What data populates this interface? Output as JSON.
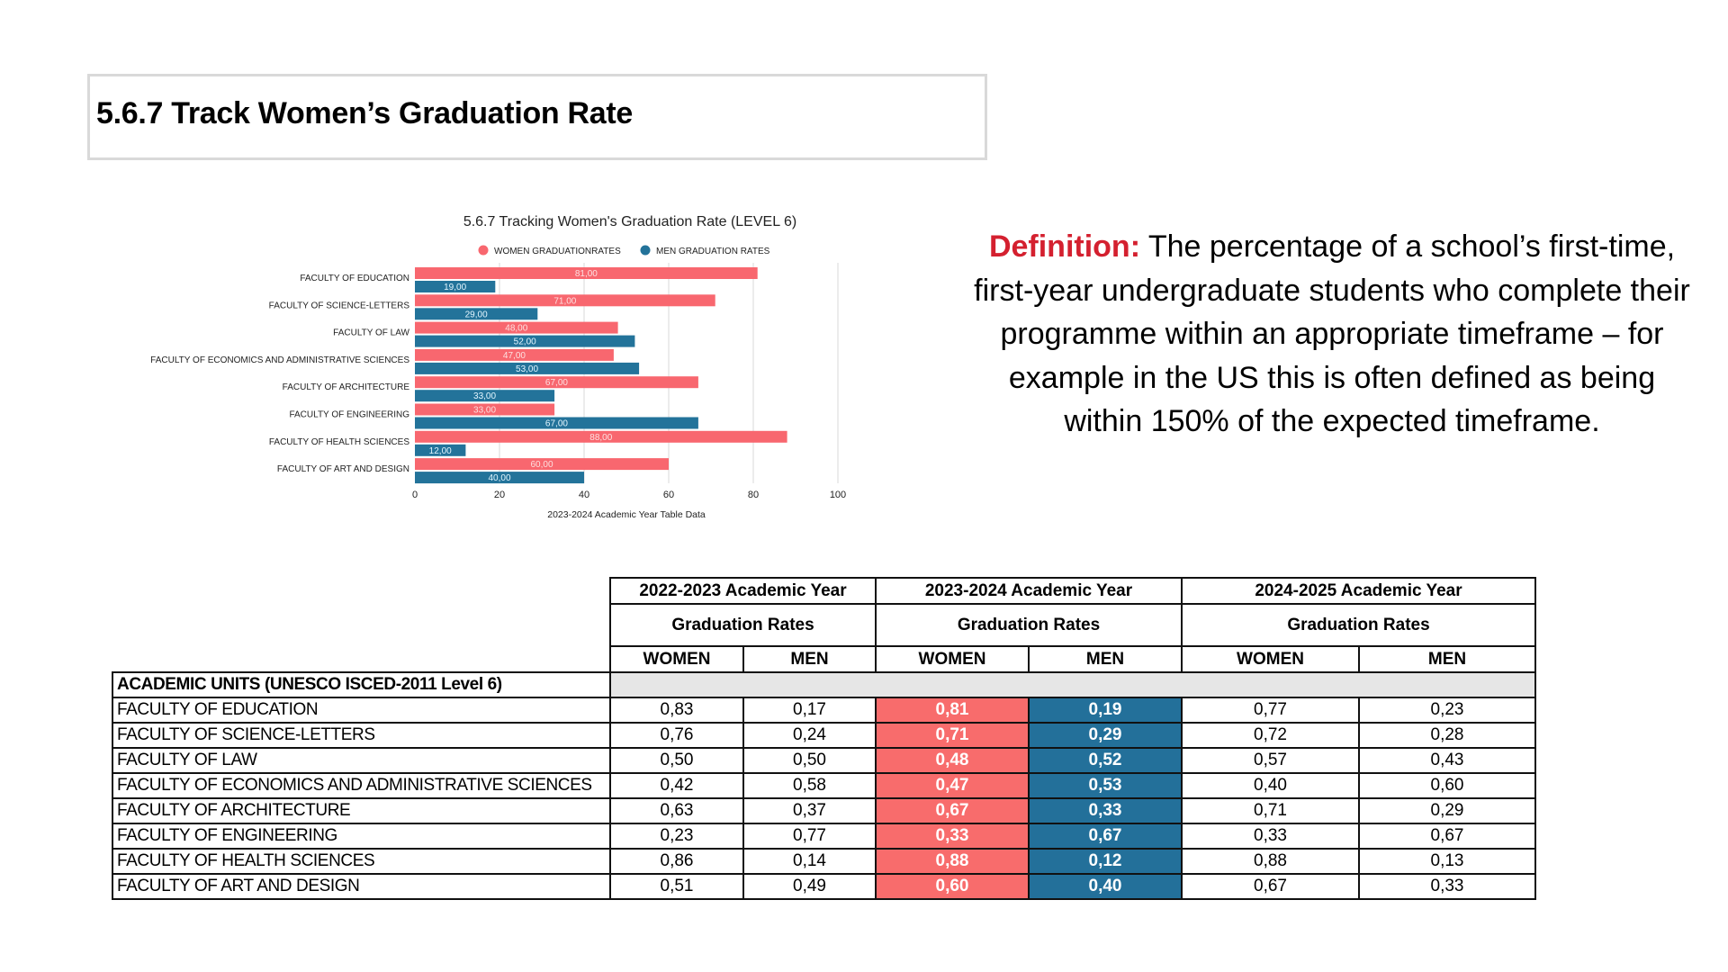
{
  "page": {
    "title": "5.6.7 Track Women’s Graduation Rate"
  },
  "definition": {
    "label": "Definition:",
    "text": " The percentage of a school’s first-time, first-year undergraduate students who complete their programme within an appropriate timeframe – for example in the US this is often defined as being within 150% of the expected timeframe."
  },
  "colors": {
    "women": "#f8676f",
    "men": "#23739a",
    "women_cell": "#f86c6c",
    "men_cell": "#23709a",
    "definition_label": "#d4202f",
    "gridline": "#d9d9d9"
  },
  "chart_data": {
    "type": "bar",
    "orientation": "horizontal",
    "title": "5.6.7 Tracking Women's Graduation Rate (LEVEL 6)",
    "xlabel": "2023-2024 Academic Year Table Data",
    "ylabel": "",
    "xlim": [
      0,
      100
    ],
    "xticks": [
      0,
      20,
      40,
      60,
      80,
      100
    ],
    "grid": true,
    "legend_position": "top",
    "categories": [
      "FACULTY OF EDUCATION",
      "FACULTY OF SCIENCE-LETTERS",
      "FACULTY OF LAW",
      "FACULTY OF ECONOMICS AND ADMINISTRATIVE SCIENCES",
      "FACULTY OF ARCHITECTURE",
      "FACULTY OF ENGINEERING",
      "FACULTY OF HEALTH SCIENCES",
      "FACULTY OF ART AND DESIGN"
    ],
    "series": [
      {
        "name": "WOMEN GRADUATIONRATES",
        "color": "#f8676f",
        "values": [
          81,
          71,
          48,
          47,
          67,
          33,
          88,
          60
        ],
        "labels": [
          "81,00",
          "71,00",
          "48,00",
          "47,00",
          "67,00",
          "33,00",
          "88,00",
          "60,00"
        ]
      },
      {
        "name": "MEN GRADUATION RATES",
        "color": "#23739a",
        "values": [
          19,
          29,
          52,
          53,
          33,
          67,
          12,
          40
        ],
        "labels": [
          "19,00",
          "29,00",
          "52,00",
          "53,00",
          "33,00",
          "67,00",
          "12,00",
          "40,00"
        ]
      }
    ]
  },
  "table": {
    "years": [
      "2022-2023 Academic Year",
      "2023-2024 Academic Year",
      "2024-2025 Academic Year"
    ],
    "subheader": "Graduation Rates",
    "genders": [
      "WOMEN",
      "MEN"
    ],
    "section_label": "ACADEMIC UNITS (UNESCO ISCED-2011 Level 6)",
    "highlight_year_index": 1,
    "rows": [
      {
        "unit": "FACULTY OF EDUCATION",
        "values": [
          "0,83",
          "0,17",
          "0,81",
          "0,19",
          "0,77",
          "0,23"
        ]
      },
      {
        "unit": "FACULTY OF SCIENCE-LETTERS",
        "values": [
          "0,76",
          "0,24",
          "0,71",
          "0,29",
          "0,72",
          "0,28"
        ]
      },
      {
        "unit": "FACULTY OF LAW",
        "values": [
          "0,50",
          "0,50",
          "0,48",
          "0,52",
          "0,57",
          "0,43"
        ]
      },
      {
        "unit": "FACULTY OF ECONOMICS AND ADMINISTRATIVE SCIENCES",
        "values": [
          "0,42",
          "0,58",
          "0,47",
          "0,53",
          "0,40",
          "0,60"
        ]
      },
      {
        "unit": "FACULTY OF ARCHITECTURE",
        "values": [
          "0,63",
          "0,37",
          "0,67",
          "0,33",
          "0,71",
          "0,29"
        ]
      },
      {
        "unit": "FACULTY OF ENGINEERING",
        "values": [
          "0,23",
          "0,77",
          "0,33",
          "0,67",
          "0,33",
          "0,67"
        ]
      },
      {
        "unit": "FACULTY OF HEALTH SCIENCES",
        "values": [
          "0,86",
          "0,14",
          "0,88",
          "0,12",
          "0,88",
          "0,13"
        ]
      },
      {
        "unit": "FACULTY OF ART AND DESIGN",
        "values": [
          "0,51",
          "0,49",
          "0,60",
          "0,40",
          "0,67",
          "0,33"
        ]
      }
    ]
  }
}
